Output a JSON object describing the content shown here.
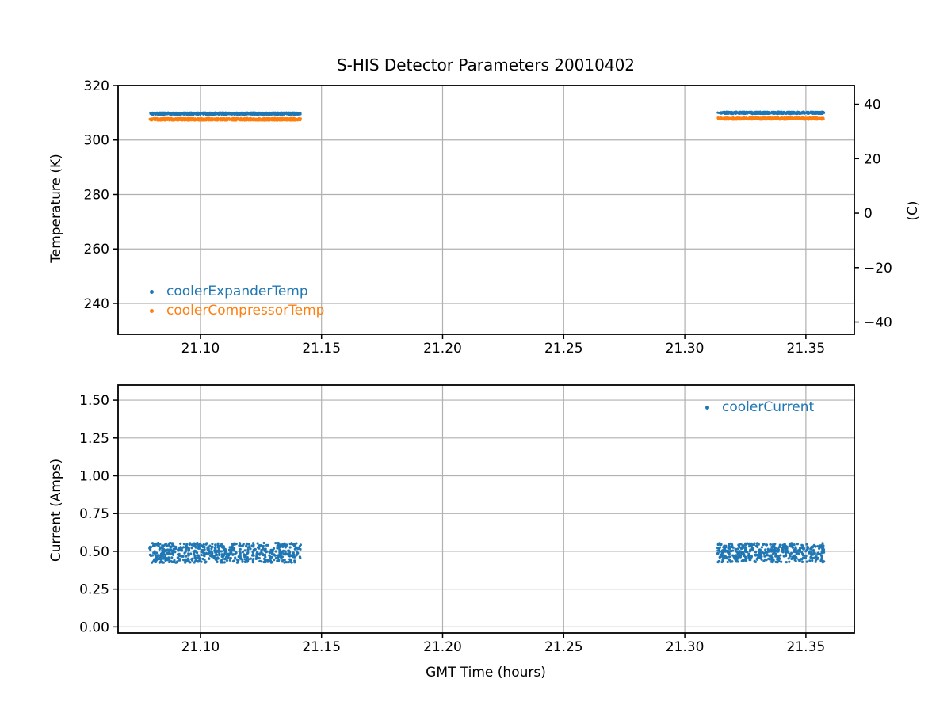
{
  "figure": {
    "title": "S-HIS Detector Parameters 20010402",
    "background_color": "#ffffff",
    "grid_color": "#b0b0b0",
    "spine_color": "#000000",
    "text_color": "#000000"
  },
  "chart_data": [
    {
      "type": "scatter",
      "title": "S-HIS Detector Parameters 20010402",
      "xlabel": "",
      "ylabel": "Temperature (K)",
      "ylabel_right": "(C)",
      "xlim": [
        21.066,
        21.37
      ],
      "ylim": [
        228.65,
        320
      ],
      "ylim_right": [
        -44.5,
        46.85
      ],
      "xticks": [
        21.1,
        21.15,
        21.2,
        21.25,
        21.3,
        21.35
      ],
      "xtick_labels": [
        "21.10",
        "21.15",
        "21.20",
        "21.25",
        "21.30",
        "21.35"
      ],
      "yticks": [
        240,
        260,
        280,
        300,
        320
      ],
      "ytick_labels": [
        "240",
        "260",
        "280",
        "300",
        "320"
      ],
      "yticks_right": [
        -40,
        -20,
        0,
        20,
        40
      ],
      "ytick_right_labels": [
        "−40",
        "−20",
        "0",
        "20",
        "40"
      ],
      "grid": true,
      "legend": {
        "location": "lower left",
        "frame": false
      },
      "series": [
        {
          "name": "coolerExpanderTemp",
          "color": "#1f77b4",
          "marker": "point",
          "marker_px": 2.6,
          "segments": [
            {
              "x_start": 21.079,
              "x_end": 21.1415,
              "y_mean": 309.7,
              "y_spread": 0.45,
              "n_points": 900
            },
            {
              "x_start": 21.3135,
              "x_end": 21.3575,
              "y_mean": 310.0,
              "y_spread": 0.45,
              "n_points": 640
            }
          ]
        },
        {
          "name": "coolerCompressorTemp",
          "color": "#ff7f0e",
          "marker": "point",
          "marker_px": 2.6,
          "segments": [
            {
              "x_start": 21.079,
              "x_end": 21.1415,
              "y_mean": 307.6,
              "y_spread": 0.5,
              "n_points": 900
            },
            {
              "x_start": 21.3135,
              "x_end": 21.3575,
              "y_mean": 307.9,
              "y_spread": 0.45,
              "n_points": 640
            }
          ]
        }
      ]
    },
    {
      "type": "scatter",
      "title": "",
      "xlabel": "GMT Time (hours)",
      "ylabel": "Current (Amps)",
      "xlim": [
        21.066,
        21.37
      ],
      "ylim": [
        -0.04,
        1.6
      ],
      "xticks": [
        21.1,
        21.15,
        21.2,
        21.25,
        21.3,
        21.35
      ],
      "xtick_labels": [
        "21.10",
        "21.15",
        "21.20",
        "21.25",
        "21.30",
        "21.35"
      ],
      "yticks": [
        0,
        0.25,
        0.5,
        0.75,
        1,
        1.25,
        1.5
      ],
      "ytick_labels": [
        "0.00",
        "0.25",
        "0.50",
        "0.75",
        "1.00",
        "1.25",
        "1.50"
      ],
      "grid": true,
      "legend": {
        "location": "upper right",
        "frame": false
      },
      "series": [
        {
          "name": "coolerCurrent",
          "color": "#1f77b4",
          "marker": "point",
          "marker_px": 3.2,
          "segments": [
            {
              "x_start": 21.079,
              "x_end": 21.1415,
              "y_mean": 0.49,
              "y_spread": 0.065,
              "n_points": 620
            },
            {
              "x_start": 21.3135,
              "x_end": 21.3575,
              "y_mean": 0.49,
              "y_spread": 0.063,
              "n_points": 450
            }
          ]
        }
      ]
    }
  ]
}
